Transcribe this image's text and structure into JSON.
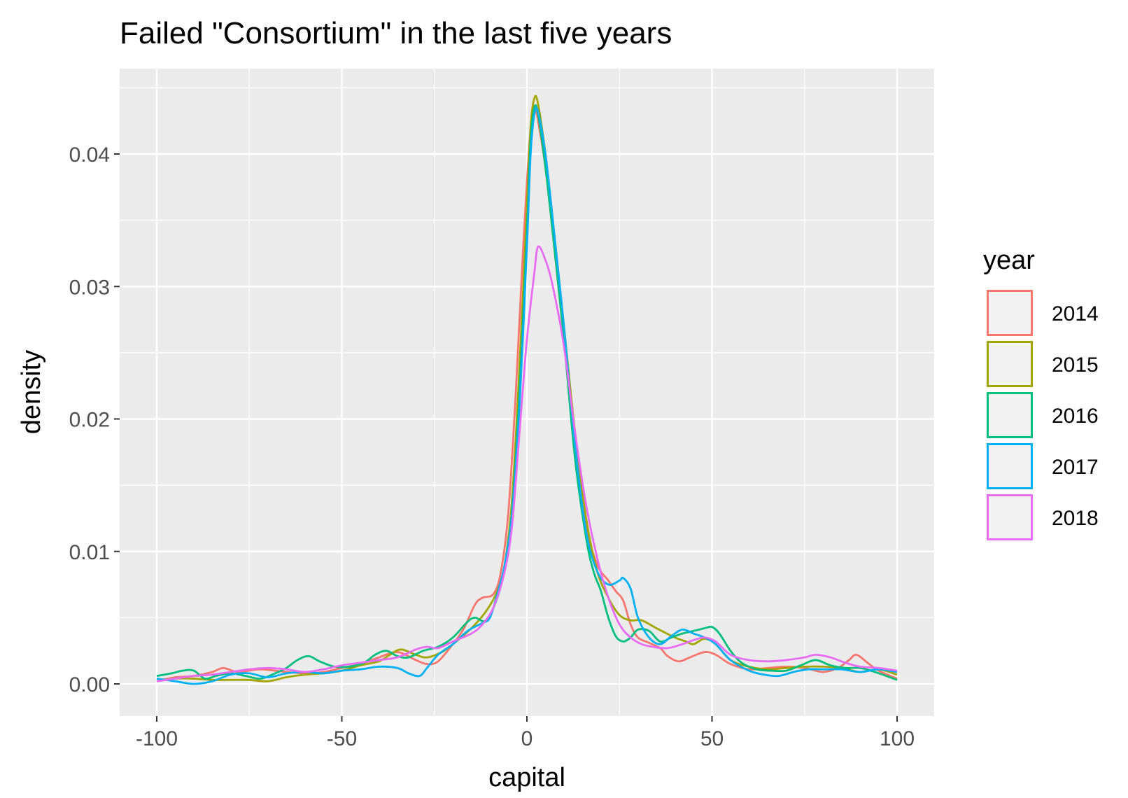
{
  "chart_data": {
    "type": "line",
    "title": "Failed \"Consortium\" in the last five years",
    "xlabel": "capital",
    "ylabel": "density",
    "xlim": [
      -100,
      100
    ],
    "ylim": [
      0,
      0.045
    ],
    "x_ticks": [
      -100,
      -50,
      0,
      50,
      100
    ],
    "x_tick_labels": [
      "-100",
      "-50",
      "0",
      "50",
      "100"
    ],
    "y_ticks": [
      0,
      0.01,
      0.02,
      0.03,
      0.04
    ],
    "y_tick_labels": [
      "0.00",
      "0.01",
      "0.02",
      "0.03",
      "0.04"
    ],
    "grid": true,
    "legend": {
      "title": "year",
      "position": "right"
    },
    "series": [
      {
        "name": "2014",
        "color": "#F8766D",
        "points": [
          [
            -100,
            0.0002
          ],
          [
            -95,
            0.0005
          ],
          [
            -90,
            0.0006
          ],
          [
            -85,
            0.0009
          ],
          [
            -82,
            0.0012
          ],
          [
            -78,
            0.0009
          ],
          [
            -72,
            0.0011
          ],
          [
            -65,
            0.0009
          ],
          [
            -60,
            0.0008
          ],
          [
            -55,
            0.0009
          ],
          [
            -50,
            0.0012
          ],
          [
            -45,
            0.0015
          ],
          [
            -40,
            0.002
          ],
          [
            -35,
            0.0024
          ],
          [
            -30,
            0.0018
          ],
          [
            -27,
            0.0015
          ],
          [
            -24,
            0.0017
          ],
          [
            -20,
            0.003
          ],
          [
            -17,
            0.0042
          ],
          [
            -14,
            0.006
          ],
          [
            -12,
            0.0065
          ],
          [
            -9,
            0.0068
          ],
          [
            -7,
            0.0085
          ],
          [
            -5,
            0.013
          ],
          [
            -3,
            0.022
          ],
          [
            -1,
            0.033
          ],
          [
            1,
            0.042
          ],
          [
            2,
            0.0436
          ],
          [
            3,
            0.0425
          ],
          [
            5,
            0.039
          ],
          [
            7,
            0.034
          ],
          [
            10,
            0.026
          ],
          [
            13,
            0.018
          ],
          [
            16,
            0.012
          ],
          [
            19,
            0.009
          ],
          [
            22,
            0.0078
          ],
          [
            24,
            0.007
          ],
          [
            26,
            0.0063
          ],
          [
            28,
            0.0045
          ],
          [
            30,
            0.0035
          ],
          [
            33,
            0.0031
          ],
          [
            36,
            0.0027
          ],
          [
            38,
            0.0021
          ],
          [
            41,
            0.0017
          ],
          [
            44,
            0.002
          ],
          [
            48,
            0.0024
          ],
          [
            51,
            0.0022
          ],
          [
            55,
            0.0015
          ],
          [
            60,
            0.0011
          ],
          [
            65,
            0.0012
          ],
          [
            70,
            0.0013
          ],
          [
            75,
            0.0012
          ],
          [
            80,
            0.0009
          ],
          [
            84,
            0.0012
          ],
          [
            87,
            0.0018
          ],
          [
            89,
            0.0022
          ],
          [
            92,
            0.0016
          ],
          [
            95,
            0.001
          ],
          [
            100,
            0.0004
          ]
        ]
      },
      {
        "name": "2015",
        "color": "#A3A500",
        "points": [
          [
            -100,
            0.0002
          ],
          [
            -95,
            0.0004
          ],
          [
            -90,
            0.0004
          ],
          [
            -85,
            0.0003
          ],
          [
            -80,
            0.0003
          ],
          [
            -75,
            0.0003
          ],
          [
            -70,
            0.0002
          ],
          [
            -65,
            0.0005
          ],
          [
            -60,
            0.0007
          ],
          [
            -55,
            0.0008
          ],
          [
            -50,
            0.001
          ],
          [
            -45,
            0.0014
          ],
          [
            -40,
            0.0017
          ],
          [
            -37,
            0.0022
          ],
          [
            -34,
            0.0026
          ],
          [
            -30,
            0.0022
          ],
          [
            -27,
            0.002
          ],
          [
            -23,
            0.0024
          ],
          [
            -20,
            0.003
          ],
          [
            -15,
            0.0042
          ],
          [
            -11,
            0.0055
          ],
          [
            -8,
            0.007
          ],
          [
            -6,
            0.009
          ],
          [
            -4,
            0.014
          ],
          [
            -2,
            0.024
          ],
          [
            0,
            0.036
          ],
          [
            1,
            0.042
          ],
          [
            2,
            0.0442
          ],
          [
            3,
            0.0438
          ],
          [
            5,
            0.04
          ],
          [
            7,
            0.035
          ],
          [
            10,
            0.027
          ],
          [
            13,
            0.019
          ],
          [
            16,
            0.0125
          ],
          [
            19,
            0.0085
          ],
          [
            22,
            0.0065
          ],
          [
            25,
            0.0052
          ],
          [
            28,
            0.0048
          ],
          [
            31,
            0.0048
          ],
          [
            35,
            0.0042
          ],
          [
            40,
            0.0035
          ],
          [
            43,
            0.0032
          ],
          [
            45,
            0.003
          ],
          [
            48,
            0.0034
          ],
          [
            51,
            0.003
          ],
          [
            55,
            0.0018
          ],
          [
            60,
            0.0013
          ],
          [
            65,
            0.0011
          ],
          [
            70,
            0.0012
          ],
          [
            75,
            0.0013
          ],
          [
            80,
            0.0013
          ],
          [
            85,
            0.0012
          ],
          [
            90,
            0.0009
          ],
          [
            95,
            0.0011
          ],
          [
            100,
            0.0007
          ]
        ]
      },
      {
        "name": "2016",
        "color": "#00BF7D",
        "points": [
          [
            -100,
            0.0006
          ],
          [
            -96,
            0.0008
          ],
          [
            -93,
            0.001
          ],
          [
            -90,
            0.001
          ],
          [
            -87,
            0.0004
          ],
          [
            -84,
            0.0006
          ],
          [
            -80,
            0.0008
          ],
          [
            -76,
            0.0006
          ],
          [
            -72,
            0.0004
          ],
          [
            -68,
            0.0008
          ],
          [
            -65,
            0.0012
          ],
          [
            -62,
            0.0018
          ],
          [
            -59,
            0.0021
          ],
          [
            -56,
            0.0017
          ],
          [
            -52,
            0.0013
          ],
          [
            -48,
            0.0013
          ],
          [
            -44,
            0.0016
          ],
          [
            -41,
            0.0022
          ],
          [
            -38,
            0.0025
          ],
          [
            -35,
            0.0021
          ],
          [
            -32,
            0.002
          ],
          [
            -28,
            0.0025
          ],
          [
            -24,
            0.0028
          ],
          [
            -20,
            0.0035
          ],
          [
            -16,
            0.0047
          ],
          [
            -14,
            0.005
          ],
          [
            -11,
            0.0048
          ],
          [
            -8,
            0.0065
          ],
          [
            -6,
            0.0088
          ],
          [
            -4,
            0.013
          ],
          [
            -2,
            0.022
          ],
          [
            0,
            0.034
          ],
          [
            1,
            0.041
          ],
          [
            2,
            0.0435
          ],
          [
            3,
            0.043
          ],
          [
            5,
            0.039
          ],
          [
            7,
            0.034
          ],
          [
            10,
            0.026
          ],
          [
            13,
            0.017
          ],
          [
            16,
            0.011
          ],
          [
            18,
            0.0085
          ],
          [
            20,
            0.007
          ],
          [
            22,
            0.005
          ],
          [
            24,
            0.0036
          ],
          [
            26,
            0.0032
          ],
          [
            28,
            0.0035
          ],
          [
            30,
            0.0041
          ],
          [
            33,
            0.004
          ],
          [
            36,
            0.0032
          ],
          [
            39,
            0.0035
          ],
          [
            42,
            0.0038
          ],
          [
            45,
            0.004
          ],
          [
            48,
            0.0042
          ],
          [
            50,
            0.0043
          ],
          [
            52,
            0.0038
          ],
          [
            55,
            0.0025
          ],
          [
            58,
            0.0016
          ],
          [
            62,
            0.0011
          ],
          [
            66,
            0.001
          ],
          [
            70,
            0.001
          ],
          [
            74,
            0.0014
          ],
          [
            78,
            0.0018
          ],
          [
            82,
            0.0014
          ],
          [
            86,
            0.0012
          ],
          [
            90,
            0.0012
          ],
          [
            94,
            0.0009
          ],
          [
            100,
            0.0003
          ]
        ]
      },
      {
        "name": "2017",
        "color": "#00B0F6",
        "points": [
          [
            -100,
            0.0004
          ],
          [
            -95,
            0.0002
          ],
          [
            -90,
            0.0
          ],
          [
            -85,
            0.0002
          ],
          [
            -80,
            0.0007
          ],
          [
            -75,
            0.0008
          ],
          [
            -70,
            0.0005
          ],
          [
            -65,
            0.0008
          ],
          [
            -60,
            0.0009
          ],
          [
            -55,
            0.0008
          ],
          [
            -50,
            0.001
          ],
          [
            -45,
            0.0011
          ],
          [
            -40,
            0.0013
          ],
          [
            -35,
            0.0012
          ],
          [
            -32,
            0.0008
          ],
          [
            -29,
            0.0006
          ],
          [
            -27,
            0.0012
          ],
          [
            -24,
            0.0022
          ],
          [
            -20,
            0.003
          ],
          [
            -16,
            0.004
          ],
          [
            -12,
            0.0046
          ],
          [
            -10,
            0.005
          ],
          [
            -8,
            0.0068
          ],
          [
            -6,
            0.009
          ],
          [
            -4,
            0.013
          ],
          [
            -2,
            0.021
          ],
          [
            0,
            0.033
          ],
          [
            1,
            0.04
          ],
          [
            2,
            0.043
          ],
          [
            3,
            0.0432
          ],
          [
            5,
            0.04
          ],
          [
            7,
            0.035
          ],
          [
            10,
            0.027
          ],
          [
            13,
            0.018
          ],
          [
            16,
            0.0115
          ],
          [
            19,
            0.0085
          ],
          [
            22,
            0.0075
          ],
          [
            25,
            0.0078
          ],
          [
            26,
            0.008
          ],
          [
            28,
            0.0072
          ],
          [
            30,
            0.005
          ],
          [
            33,
            0.0035
          ],
          [
            36,
            0.003
          ],
          [
            39,
            0.0036
          ],
          [
            42,
            0.0041
          ],
          [
            45,
            0.0038
          ],
          [
            48,
            0.0035
          ],
          [
            51,
            0.003
          ],
          [
            55,
            0.0018
          ],
          [
            60,
            0.001
          ],
          [
            64,
            0.0007
          ],
          [
            68,
            0.0006
          ],
          [
            72,
            0.0009
          ],
          [
            76,
            0.0011
          ],
          [
            80,
            0.0011
          ],
          [
            85,
            0.0011
          ],
          [
            90,
            0.0009
          ],
          [
            95,
            0.0011
          ],
          [
            100,
            0.0009
          ]
        ]
      },
      {
        "name": "2018",
        "color": "#E76BF3",
        "points": [
          [
            -100,
            0.0002
          ],
          [
            -95,
            0.0004
          ],
          [
            -90,
            0.0006
          ],
          [
            -85,
            0.0007
          ],
          [
            -80,
            0.0009
          ],
          [
            -75,
            0.0011
          ],
          [
            -70,
            0.0012
          ],
          [
            -65,
            0.0011
          ],
          [
            -60,
            0.0009
          ],
          [
            -55,
            0.0011
          ],
          [
            -50,
            0.0014
          ],
          [
            -45,
            0.0016
          ],
          [
            -40,
            0.0018
          ],
          [
            -35,
            0.002
          ],
          [
            -30,
            0.0026
          ],
          [
            -27,
            0.0028
          ],
          [
            -24,
            0.0027
          ],
          [
            -20,
            0.0032
          ],
          [
            -15,
            0.0038
          ],
          [
            -12,
            0.0045
          ],
          [
            -9,
            0.0058
          ],
          [
            -6,
            0.0085
          ],
          [
            -4,
            0.012
          ],
          [
            -2,
            0.019
          ],
          [
            0,
            0.026
          ],
          [
            2,
            0.031
          ],
          [
            3,
            0.033
          ],
          [
            5,
            0.032
          ],
          [
            7,
            0.03
          ],
          [
            10,
            0.0255
          ],
          [
            13,
            0.019
          ],
          [
            16,
            0.0135
          ],
          [
            19,
            0.0095
          ],
          [
            22,
            0.0065
          ],
          [
            25,
            0.0045
          ],
          [
            28,
            0.0035
          ],
          [
            31,
            0.003
          ],
          [
            34,
            0.0028
          ],
          [
            38,
            0.0027
          ],
          [
            42,
            0.003
          ],
          [
            45,
            0.0033
          ],
          [
            48,
            0.0035
          ],
          [
            51,
            0.0032
          ],
          [
            55,
            0.0022
          ],
          [
            60,
            0.0018
          ],
          [
            65,
            0.0017
          ],
          [
            70,
            0.0018
          ],
          [
            75,
            0.002
          ],
          [
            78,
            0.0022
          ],
          [
            82,
            0.002
          ],
          [
            86,
            0.0016
          ],
          [
            90,
            0.0013
          ],
          [
            95,
            0.0012
          ],
          [
            100,
            0.001
          ]
        ]
      }
    ]
  },
  "colors": {
    "panel_background": "#EBEBEB",
    "grid_line": "#FFFFFF",
    "tick_text": "#4D4D4D",
    "tick_mark": "#333333"
  }
}
